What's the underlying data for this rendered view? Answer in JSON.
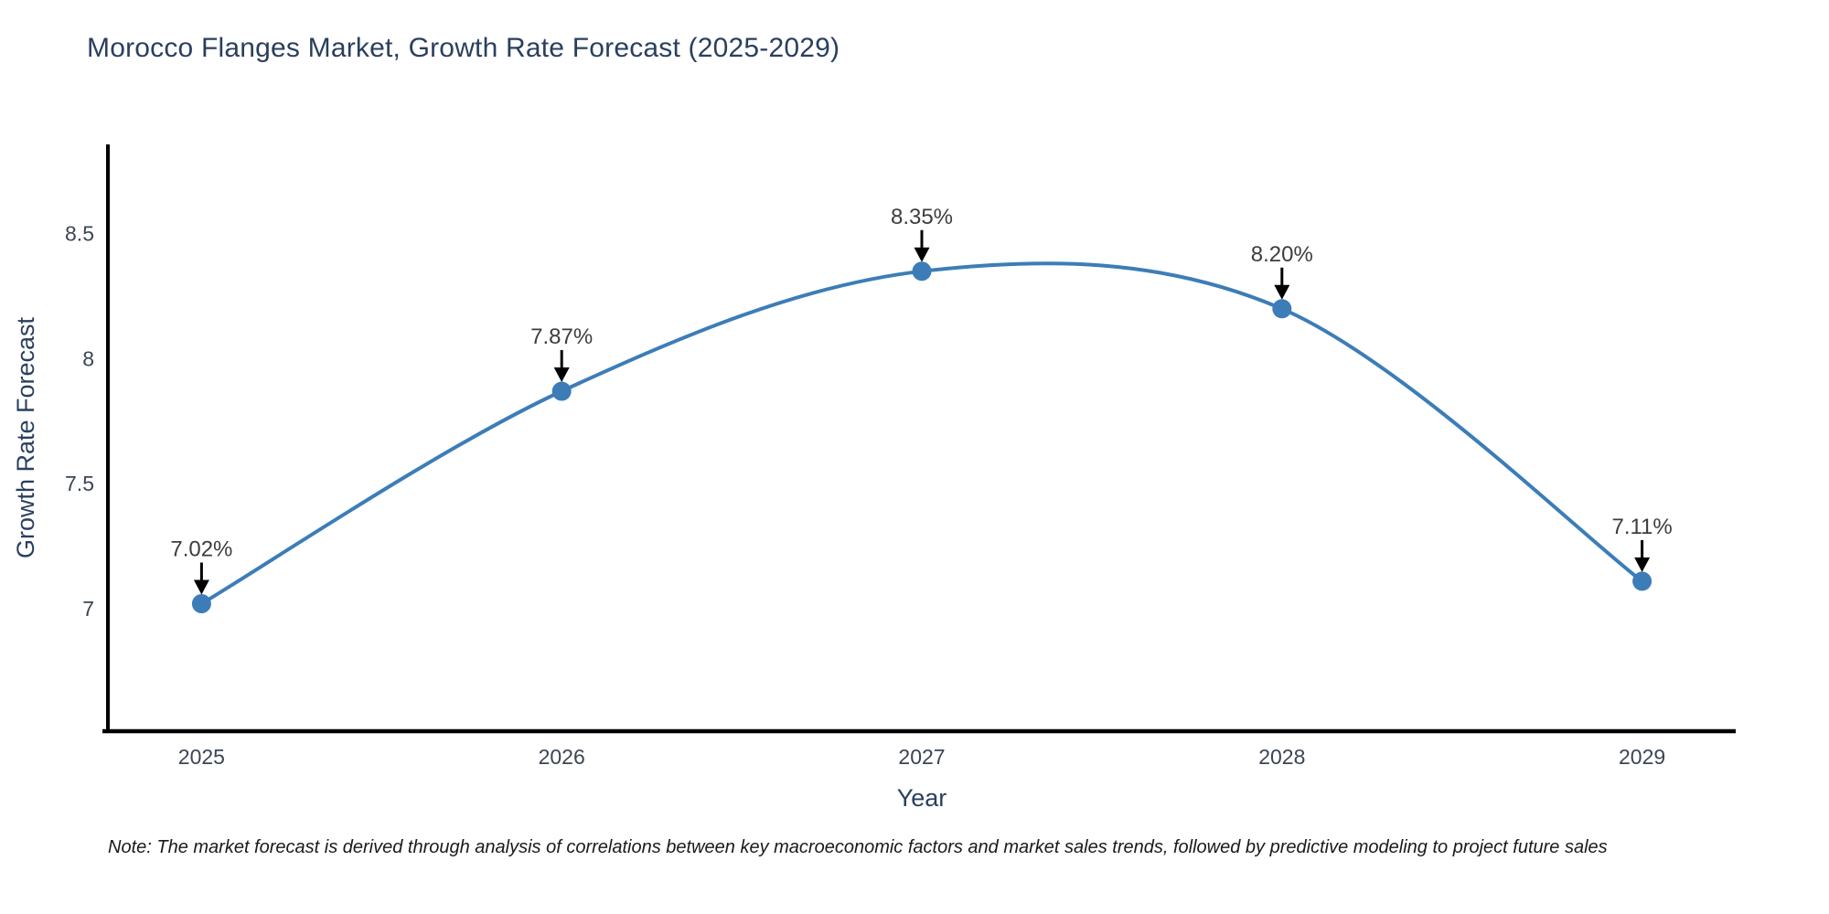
{
  "note": "Note: The market forecast is derived through analysis of correlations between key macroeconomic factors and market sales trends, followed by predictive modeling to project future sales",
  "chart_data": {
    "type": "line",
    "title": "Morocco Flanges Market, Growth Rate Forecast (2025-2029)",
    "xlabel": "Year",
    "ylabel": "Growth Rate Forecast",
    "categories": [
      "2025",
      "2026",
      "2027",
      "2028",
      "2029"
    ],
    "x": [
      2025,
      2026,
      2027,
      2028,
      2029
    ],
    "y": [
      7.02,
      7.87,
      8.35,
      8.2,
      7.11
    ],
    "point_labels": [
      "7.02%",
      "7.87%",
      "8.35%",
      "8.20%",
      "7.11%"
    ],
    "y_ticks": [
      8.5,
      8,
      7.5,
      7
    ],
    "y_tick_labels": [
      "8.5",
      "8",
      "7.5",
      "7"
    ],
    "xlim": [
      2024.74,
      2029.26
    ],
    "ylim": [
      6.51,
      8.85
    ],
    "line_shape": "spline",
    "grid": false,
    "legend": "none",
    "colors": {
      "line": "#3c7db8",
      "marker": "#3c7db8",
      "arrow": "#000000",
      "annotation_text": "#3d3d3d",
      "axis_line": "#000000",
      "tick_text": "#3b4554",
      "title_text": "#2a3f5f"
    }
  }
}
